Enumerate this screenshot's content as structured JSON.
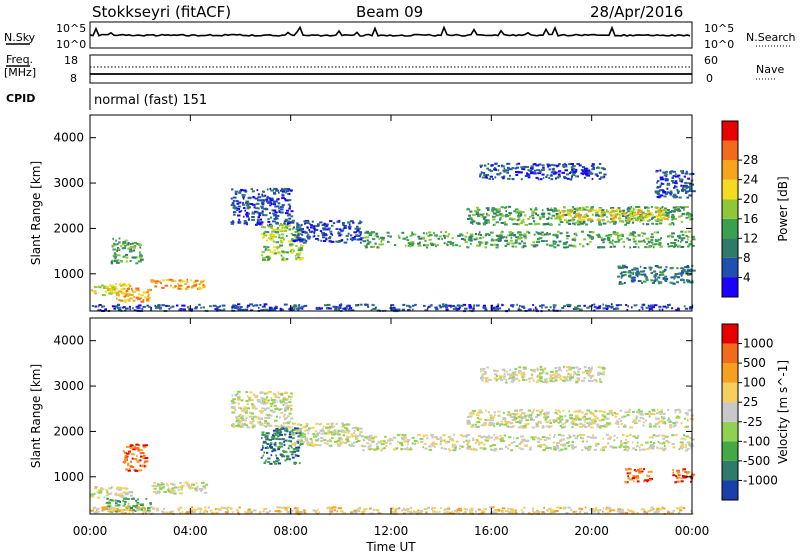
{
  "header": {
    "station": "Stokkseyri (fitACF)",
    "beam": "Beam 09",
    "date": "28/Apr/2016"
  },
  "top_panels": {
    "nsky_label": "N.Sky",
    "nsearch_label": "N.Search",
    "nsky_ticks": [
      "10^5",
      "10^0"
    ],
    "nsearch_ticks": [
      "10^5",
      "10^0"
    ],
    "freq_label": "Freq.",
    "freq_unit": "[MHz]",
    "freq_ticks": [
      "18",
      "8"
    ],
    "nave_label": "Nave",
    "nave_ticks": [
      "60",
      "0"
    ],
    "cpid_label": "CPID",
    "cpid_text": "normal (fast) 151"
  },
  "chart_data": [
    {
      "type": "heatmap",
      "name": "power",
      "ylabel": "Slant Range [km]",
      "xlabel": "Time UT",
      "ylim": [
        180,
        4500
      ],
      "yticks": [
        "1000",
        "2000",
        "3000",
        "4000"
      ],
      "xticks": [
        "00:00",
        "04:00",
        "08:00",
        "12:00",
        "16:00",
        "20:00",
        "00:00"
      ],
      "colorbar": {
        "label": "Power [dB]",
        "ticks": [
          "4",
          "8",
          "12",
          "16",
          "20",
          "24",
          "28"
        ],
        "colors": [
          "#1c00ff",
          "#1f4fb0",
          "#2f7a6a",
          "#3aa050",
          "#8ec838",
          "#f3dc20",
          "#f6a51c",
          "#f26b1c",
          "#e80000"
        ]
      },
      "regions": [
        {
          "t0": 0.0,
          "t1": 1.6,
          "r0": 550,
          "r1": 800,
          "level": 5
        },
        {
          "t0": 0.8,
          "t1": 2.0,
          "r0": 1250,
          "r1": 1800,
          "level": 3
        },
        {
          "t0": 1.0,
          "t1": 2.4,
          "r0": 400,
          "r1": 700,
          "level": 6
        },
        {
          "t0": 2.4,
          "t1": 4.6,
          "r0": 680,
          "r1": 900,
          "level": 6
        },
        {
          "t0": 0.0,
          "t1": 24.0,
          "r0": 200,
          "r1": 350,
          "level": 1
        },
        {
          "t0": 5.6,
          "t1": 8.0,
          "r0": 2100,
          "r1": 2900,
          "level": 1
        },
        {
          "t0": 6.8,
          "t1": 8.4,
          "r0": 1300,
          "r1": 2100,
          "level": 4
        },
        {
          "t0": 8.0,
          "t1": 10.8,
          "r0": 1700,
          "r1": 2200,
          "level": 1
        },
        {
          "t0": 10.8,
          "t1": 24.0,
          "r0": 1600,
          "r1": 1950,
          "level": 3
        },
        {
          "t0": 15.0,
          "t1": 24.0,
          "r0": 2100,
          "r1": 2500,
          "level": 3
        },
        {
          "t0": 18.5,
          "t1": 23.0,
          "r0": 2200,
          "r1": 2450,
          "level": 5
        },
        {
          "t0": 15.5,
          "t1": 20.5,
          "r0": 3100,
          "r1": 3450,
          "level": 1
        },
        {
          "t0": 21.0,
          "t1": 24.0,
          "r0": 800,
          "r1": 1200,
          "level": 2
        },
        {
          "t0": 22.5,
          "t1": 24.0,
          "r0": 2700,
          "r1": 3300,
          "level": 1
        }
      ]
    },
    {
      "type": "heatmap",
      "name": "velocity",
      "ylabel": "Slant Range [km]",
      "xlabel": "Time UT",
      "ylim": [
        180,
        4500
      ],
      "yticks": [
        "1000",
        "2000",
        "3000",
        "4000"
      ],
      "xticks": [
        "00:00",
        "04:00",
        "08:00",
        "12:00",
        "16:00",
        "20:00",
        "00:00"
      ],
      "colorbar": {
        "label": "Velocity [m s^-1]",
        "ticks": [
          "1000",
          "500",
          "100",
          "25",
          "-25",
          "-100",
          "-500",
          "-1000"
        ],
        "colors": [
          "#1a3fa8",
          "#2f7a6a",
          "#44a844",
          "#8ed254",
          "#c8c8c8",
          "#f5d060",
          "#f5a020",
          "#f26b1c",
          "#e80000"
        ]
      },
      "regions": [
        {
          "t0": 0.0,
          "t1": 1.6,
          "r0": 550,
          "r1": 800,
          "level": 4
        },
        {
          "t0": 0.6,
          "t1": 2.4,
          "r0": 250,
          "r1": 550,
          "level": 2
        },
        {
          "t0": 1.3,
          "t1": 2.2,
          "r0": 1150,
          "r1": 1750,
          "level": 7
        },
        {
          "t0": 2.4,
          "t1": 4.6,
          "r0": 650,
          "r1": 900,
          "level": 4
        },
        {
          "t0": 0.0,
          "t1": 24.0,
          "r0": 200,
          "r1": 350,
          "level": 5
        },
        {
          "t0": 5.6,
          "t1": 8.0,
          "r0": 2100,
          "r1": 2900,
          "level": 4
        },
        {
          "t0": 6.8,
          "t1": 8.4,
          "r0": 1300,
          "r1": 2100,
          "level": 1
        },
        {
          "t0": 8.0,
          "t1": 10.8,
          "r0": 1700,
          "r1": 2200,
          "level": 4
        },
        {
          "t0": 10.8,
          "t1": 24.0,
          "r0": 1600,
          "r1": 1950,
          "level": 4
        },
        {
          "t0": 15.0,
          "t1": 24.0,
          "r0": 2100,
          "r1": 2500,
          "level": 4
        },
        {
          "t0": 15.5,
          "t1": 20.5,
          "r0": 3100,
          "r1": 3450,
          "level": 4
        },
        {
          "t0": 21.3,
          "t1": 22.3,
          "r0": 900,
          "r1": 1200,
          "level": 7
        },
        {
          "t0": 23.2,
          "t1": 24.0,
          "r0": 900,
          "r1": 1200,
          "level": 7
        }
      ]
    }
  ]
}
